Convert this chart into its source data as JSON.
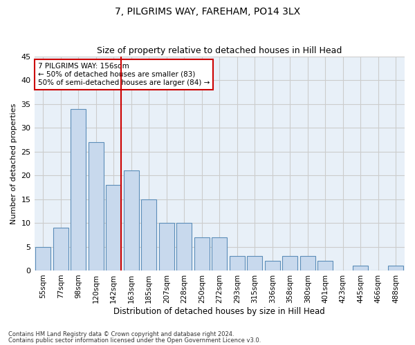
{
  "title1": "7, PILGRIMS WAY, FAREHAM, PO14 3LX",
  "title2": "Size of property relative to detached houses in Hill Head",
  "xlabel": "Distribution of detached houses by size in Hill Head",
  "ylabel": "Number of detached properties",
  "categories": [
    "55sqm",
    "77sqm",
    "98sqm",
    "120sqm",
    "142sqm",
    "163sqm",
    "185sqm",
    "207sqm",
    "228sqm",
    "250sqm",
    "272sqm",
    "293sqm",
    "315sqm",
    "336sqm",
    "358sqm",
    "380sqm",
    "401sqm",
    "423sqm",
    "445sqm",
    "466sqm",
    "488sqm"
  ],
  "values": [
    5,
    9,
    34,
    27,
    18,
    21,
    15,
    10,
    10,
    7,
    7,
    3,
    3,
    2,
    3,
    3,
    2,
    0,
    1,
    0,
    1
  ],
  "bar_color": "#c8d9ed",
  "bar_edge_color": "#5b8db8",
  "vline_color": "#cc0000",
  "annotation_box_text": "7 PILGRIMS WAY: 156sqm\n← 50% of detached houses are smaller (83)\n50% of semi-detached houses are larger (84) →",
  "annotation_box_edge_color": "#cc0000",
  "ylim": [
    0,
    45
  ],
  "yticks": [
    0,
    5,
    10,
    15,
    20,
    25,
    30,
    35,
    40,
    45
  ],
  "grid_color": "#cccccc",
  "bg_color": "#e8f0f8",
  "fig_bg_color": "#ffffff",
  "footnote1": "Contains HM Land Registry data © Crown copyright and database right 2024.",
  "footnote2": "Contains public sector information licensed under the Open Government Licence v3.0."
}
